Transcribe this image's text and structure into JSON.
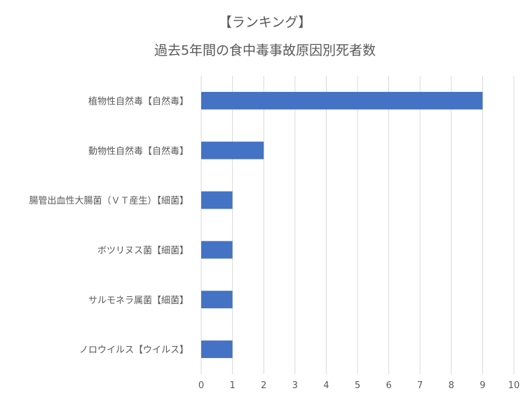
{
  "chart_data": {
    "type": "bar",
    "orientation": "horizontal",
    "title": "【ランキング】",
    "subtitle": "過去5年間の食中毒事故原因別死者数",
    "categories": [
      "植物性自然毒【自然毒】",
      "動物性自然毒【自然毒】",
      "腸管出血性大腸菌（ＶＴ産生）【細菌】",
      "ボツリヌス菌【細菌】",
      "サルモネラ属菌【細菌】",
      "ノロウイルス【ウイルス】"
    ],
    "values": [
      9,
      2,
      1,
      1,
      1,
      1
    ],
    "xlim": [
      0,
      10
    ],
    "xticks": [
      "0",
      "1",
      "2",
      "3",
      "4",
      "5",
      "6",
      "7",
      "8",
      "9",
      "10"
    ],
    "xlabel": "",
    "ylabel": "",
    "grid": "vertical",
    "legend": "none",
    "bar_color": "#4472C4"
  }
}
